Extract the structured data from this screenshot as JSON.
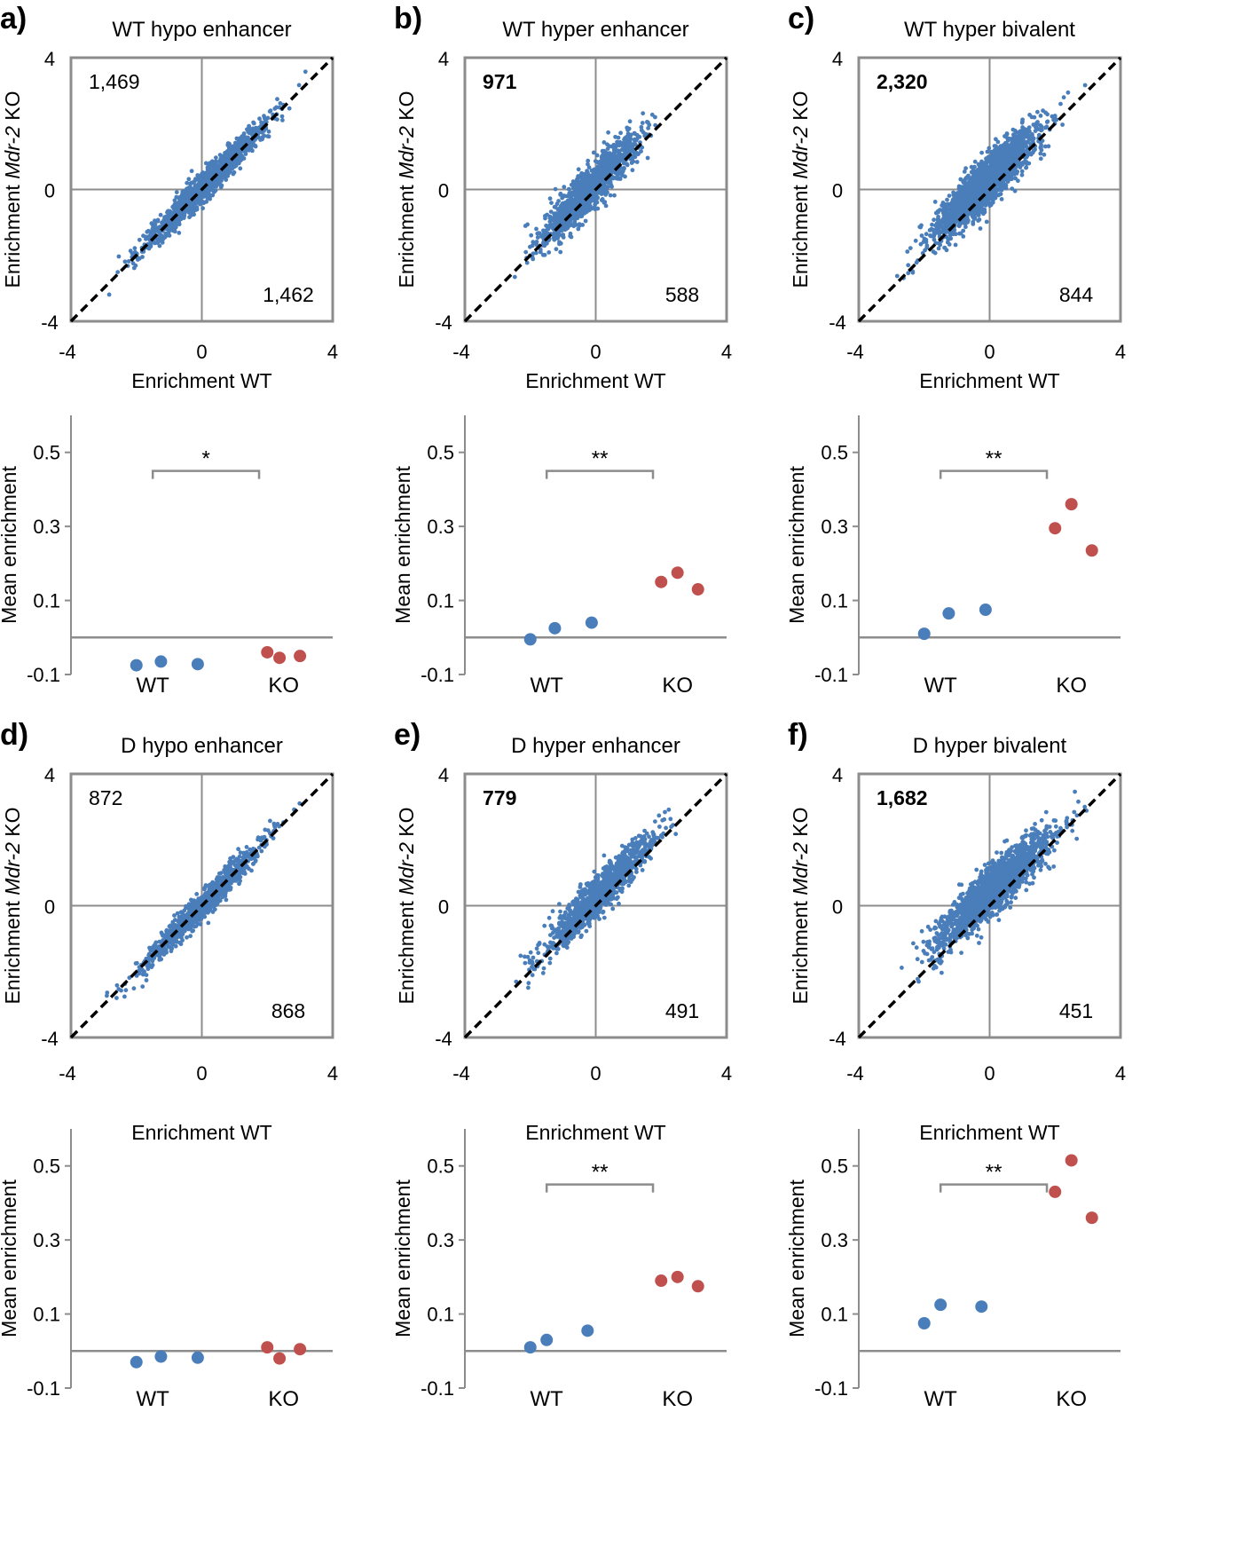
{
  "chart_data": [
    {
      "panel_label": "a)",
      "type": "scatter",
      "title": "WT hypo enhancer",
      "xlabel": "Enrichment WT",
      "ylabel_parts": [
        "Enrichment ",
        "Mdr-2",
        " KO"
      ],
      "xlim": [
        -4,
        4
      ],
      "ylim": [
        -4,
        4
      ],
      "ticks": [
        "-4",
        "0",
        "4"
      ],
      "count_above": "1,469",
      "count_above_bold": false,
      "count_below": "1,462",
      "cloud": {
        "x_mean": 0.1,
        "x_sd": 0.9,
        "slope": 1.0,
        "offset": 0.05,
        "noise": 0.22,
        "n": 1400
      },
      "diagonal": "y = x"
    },
    {
      "panel_label": "b)",
      "type": "scatter",
      "title": "WT hyper enhancer",
      "xlabel": "Enrichment WT",
      "ylabel_parts": [
        "Enrichment ",
        "Mdr-2",
        " KO"
      ],
      "xlim": [
        -4,
        4
      ],
      "ylim": [
        -4,
        4
      ],
      "ticks": [
        "-4",
        "0",
        "4"
      ],
      "count_above": "971",
      "count_above_bold": true,
      "count_below": "588",
      "cloud": {
        "x_mean": -0.2,
        "x_sd": 0.7,
        "slope": 1.0,
        "offset": 0.2,
        "noise": 0.32,
        "n": 1400
      },
      "diagonal": "y = x"
    },
    {
      "panel_label": "c)",
      "type": "scatter",
      "title": "WT hyper bivalent",
      "xlabel": "Enrichment WT",
      "ylabel_parts": [
        "Enrichment ",
        "Mdr-2",
        " KO"
      ],
      "xlim": [
        -4,
        4
      ],
      "ylim": [
        -4,
        4
      ],
      "ticks": [
        "-4",
        "0",
        "4"
      ],
      "count_above": "2,320",
      "count_above_bold": true,
      "count_below": "844",
      "cloud": {
        "x_mean": -0.1,
        "x_sd": 0.75,
        "slope": 0.95,
        "offset": 0.3,
        "noise": 0.35,
        "n": 2200
      },
      "diagonal": "y = x"
    },
    {
      "panel_label": "d)",
      "type": "scatter",
      "title": "D hypo enhancer",
      "xlabel": "Enrichment WT",
      "ylabel_parts": [
        "Enrichment ",
        "Mdr-2",
        " KO"
      ],
      "xlim": [
        -4,
        4
      ],
      "ylim": [
        -4,
        4
      ],
      "ticks": [
        "-4",
        "0",
        "4"
      ],
      "count_above": "872",
      "count_above_bold": false,
      "count_below": "868",
      "cloud": {
        "x_mean": 0.0,
        "x_sd": 0.9,
        "slope": 1.0,
        "offset": 0.0,
        "noise": 0.2,
        "n": 1100
      },
      "diagonal": "y = x"
    },
    {
      "panel_label": "e)",
      "type": "scatter",
      "title": "D hyper enhancer",
      "xlabel": "Enrichment WT",
      "ylabel_parts": [
        "Enrichment ",
        "Mdr-2",
        " KO"
      ],
      "xlim": [
        -4,
        4
      ],
      "ylim": [
        -4,
        4
      ],
      "ticks": [
        "-4",
        "0",
        "4"
      ],
      "count_above": "779",
      "count_above_bold": true,
      "count_below": "491",
      "cloud": {
        "x_mean": 0.1,
        "x_sd": 0.85,
        "slope": 1.0,
        "offset": 0.25,
        "noise": 0.3,
        "n": 1100
      },
      "diagonal": "y = x"
    },
    {
      "panel_label": "f)",
      "type": "scatter",
      "title": "D hyper bivalent",
      "xlabel": "Enrichment WT",
      "ylabel_parts": [
        "Enrichment ",
        "Mdr-2",
        " KO"
      ],
      "xlim": [
        -4,
        4
      ],
      "ylim": [
        -4,
        4
      ],
      "ticks": [
        "-4",
        "0",
        "4"
      ],
      "count_above": "1,682",
      "count_above_bold": true,
      "count_below": "451",
      "cloud": {
        "x_mean": 0.1,
        "x_sd": 0.85,
        "slope": 0.9,
        "offset": 0.4,
        "noise": 0.35,
        "n": 1800
      },
      "diagonal": "y = x"
    },
    {
      "panel_label": "a)",
      "type": "dot",
      "ylabel": "Mean enrichment",
      "ylim": [
        -0.1,
        0.6
      ],
      "yticks": [
        "0.5",
        "0.3",
        "0.1",
        "-0.1"
      ],
      "ytick_values": [
        0.5,
        0.3,
        0.1,
        -0.1
      ],
      "categories": [
        "WT",
        "KO"
      ],
      "series": [
        {
          "name": "WT",
          "color": "#4a7ebb",
          "x": [
            0.8,
            1.1,
            1.55
          ],
          "values": [
            -0.075,
            -0.065,
            -0.072
          ]
        },
        {
          "name": "KO",
          "color": "#c0504d",
          "x": [
            2.4,
            2.55,
            2.8
          ],
          "values": [
            -0.04,
            -0.055,
            -0.05
          ]
        }
      ],
      "significance": "*"
    },
    {
      "panel_label": "b)",
      "type": "dot",
      "ylabel": "Mean enrichment",
      "ylim": [
        -0.1,
        0.6
      ],
      "yticks": [
        "0.5",
        "0.3",
        "0.1",
        "-0.1"
      ],
      "ytick_values": [
        0.5,
        0.3,
        0.1,
        -0.1
      ],
      "categories": [
        "WT",
        "KO"
      ],
      "series": [
        {
          "name": "WT",
          "color": "#4a7ebb",
          "x": [
            0.8,
            1.1,
            1.55
          ],
          "values": [
            -0.005,
            0.025,
            0.04
          ]
        },
        {
          "name": "KO",
          "color": "#c0504d",
          "x": [
            2.4,
            2.6,
            2.85
          ],
          "values": [
            0.15,
            0.175,
            0.13
          ]
        }
      ],
      "significance": "**"
    },
    {
      "panel_label": "c)",
      "type": "dot",
      "ylabel": "Mean enrichment",
      "ylim": [
        -0.1,
        0.6
      ],
      "yticks": [
        "0.5",
        "0.3",
        "0.1",
        "-0.1"
      ],
      "ytick_values": [
        0.5,
        0.3,
        0.1,
        -0.1
      ],
      "categories": [
        "WT",
        "KO"
      ],
      "series": [
        {
          "name": "WT",
          "color": "#4a7ebb",
          "x": [
            0.8,
            1.1,
            1.55
          ],
          "values": [
            0.01,
            0.065,
            0.075
          ]
        },
        {
          "name": "KO",
          "color": "#c0504d",
          "x": [
            2.4,
            2.6,
            2.85
          ],
          "values": [
            0.295,
            0.36,
            0.235
          ]
        }
      ],
      "significance": "**"
    },
    {
      "panel_label": "d)",
      "type": "dot",
      "ylabel": "Mean enrichment",
      "ylim": [
        -0.1,
        0.6
      ],
      "yticks": [
        "0.5",
        "0.3",
        "0.1",
        "-0.1"
      ],
      "ytick_values": [
        0.5,
        0.3,
        0.1,
        -0.1
      ],
      "categories": [
        "WT",
        "KO"
      ],
      "series": [
        {
          "name": "WT",
          "color": "#4a7ebb",
          "x": [
            0.8,
            1.1,
            1.55
          ],
          "values": [
            -0.03,
            -0.015,
            -0.018
          ]
        },
        {
          "name": "KO",
          "color": "#c0504d",
          "x": [
            2.4,
            2.55,
            2.8
          ],
          "values": [
            0.01,
            -0.02,
            0.005
          ]
        }
      ],
      "significance": ""
    },
    {
      "panel_label": "e)",
      "type": "dot",
      "ylabel": "Mean enrichment",
      "ylim": [
        -0.1,
        0.6
      ],
      "yticks": [
        "0.5",
        "0.3",
        "0.1",
        "-0.1"
      ],
      "ytick_values": [
        0.5,
        0.3,
        0.1,
        -0.1
      ],
      "categories": [
        "WT",
        "KO"
      ],
      "series": [
        {
          "name": "WT",
          "color": "#4a7ebb",
          "x": [
            0.8,
            1.0,
            1.5
          ],
          "values": [
            0.01,
            0.03,
            0.055
          ]
        },
        {
          "name": "KO",
          "color": "#c0504d",
          "x": [
            2.4,
            2.6,
            2.85
          ],
          "values": [
            0.19,
            0.2,
            0.175
          ]
        }
      ],
      "significance": "**"
    },
    {
      "panel_label": "f)",
      "type": "dot",
      "ylabel": "Mean enrichment",
      "ylim": [
        -0.1,
        0.6
      ],
      "yticks": [
        "0.5",
        "0.3",
        "0.1",
        "-0.1"
      ],
      "ytick_values": [
        0.5,
        0.3,
        0.1,
        -0.1
      ],
      "categories": [
        "WT",
        "KO"
      ],
      "series": [
        {
          "name": "WT",
          "color": "#4a7ebb",
          "x": [
            0.8,
            1.0,
            1.5
          ],
          "values": [
            0.075,
            0.125,
            0.12
          ]
        },
        {
          "name": "KO",
          "color": "#c0504d",
          "x": [
            2.4,
            2.6,
            2.85
          ],
          "values": [
            0.43,
            0.515,
            0.36
          ]
        }
      ],
      "significance": "**"
    }
  ],
  "colors": {
    "scatter_point": "#4a7ebb",
    "wt_dot": "#4a7ebb",
    "ko_dot": "#c0504d",
    "frame": "#8c8c8c",
    "diagonal": "#000000"
  }
}
